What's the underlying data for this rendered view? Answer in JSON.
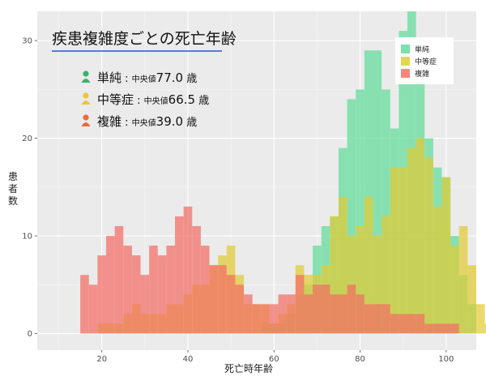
{
  "chart_data": {
    "type": "bar",
    "title": "疾患複雑度ごとの死亡年齢",
    "xlabel": "死亡時年齢",
    "ylabel": "患者数",
    "xlim": [
      5,
      107
    ],
    "ylim": [
      -1.7,
      33
    ],
    "x_ticks": [
      20,
      40,
      60,
      80,
      100
    ],
    "y_ticks": [
      0,
      10,
      20,
      30
    ],
    "bin_start": 15,
    "bin_width": 2,
    "grid": true,
    "legend_position": "top-right",
    "annotations": [
      {
        "series": "単純",
        "label": "単純",
        "stat_label": "中央値",
        "value": "77.0",
        "unit": "歳",
        "color": "#37b26c"
      },
      {
        "series": "中等症",
        "label": "中等症",
        "stat_label": "中央値",
        "value": "66.5",
        "unit": "歳",
        "color": "#eec43a"
      },
      {
        "series": "複雑",
        "label": "複雑",
        "stat_label": "中央値",
        "value": "39.0",
        "unit": "歳",
        "color": "#ea6b3c"
      }
    ],
    "series": [
      {
        "name": "単純",
        "color": "#62dc9a",
        "values": [
          0,
          0,
          0,
          0,
          0,
          0,
          0,
          0,
          0,
          0,
          0,
          0,
          0,
          0,
          0,
          0,
          0,
          0,
          0,
          0,
          0,
          1,
          1,
          1,
          2,
          4,
          5,
          9,
          11,
          12,
          19,
          24,
          25,
          29,
          29,
          25,
          21,
          31,
          33,
          28,
          20,
          17,
          16,
          10,
          6,
          3,
          0,
          0,
          0,
          0,
          0,
          0,
          0,
          0
        ]
      },
      {
        "name": "中等症",
        "color": "#e2cc35",
        "values": [
          0,
          0,
          1,
          1,
          1,
          2,
          3,
          2,
          2,
          2,
          3,
          3,
          4,
          5,
          5,
          7,
          8,
          9,
          6,
          3,
          3,
          3,
          1,
          2,
          3,
          7,
          6,
          6,
          7,
          12,
          14,
          10,
          11,
          14,
          10,
          12,
          17,
          17,
          19,
          20,
          18,
          13,
          16,
          9,
          11,
          7,
          3,
          1,
          0,
          0,
          0,
          1,
          1,
          0
        ]
      },
      {
        "name": "複雑",
        "color": "#f46e66",
        "values": [
          6,
          5,
          8,
          10,
          11,
          9,
          8,
          6,
          9,
          8,
          9,
          12,
          13,
          11,
          9,
          7,
          7,
          6,
          5,
          4,
          3,
          3,
          3,
          4,
          4,
          6,
          4,
          5,
          5,
          4,
          4,
          5,
          4,
          3,
          3,
          3,
          2,
          2,
          2,
          2,
          1,
          1,
          1,
          1,
          0,
          0,
          0,
          0,
          0,
          0,
          0,
          0,
          0,
          0
        ]
      }
    ]
  }
}
